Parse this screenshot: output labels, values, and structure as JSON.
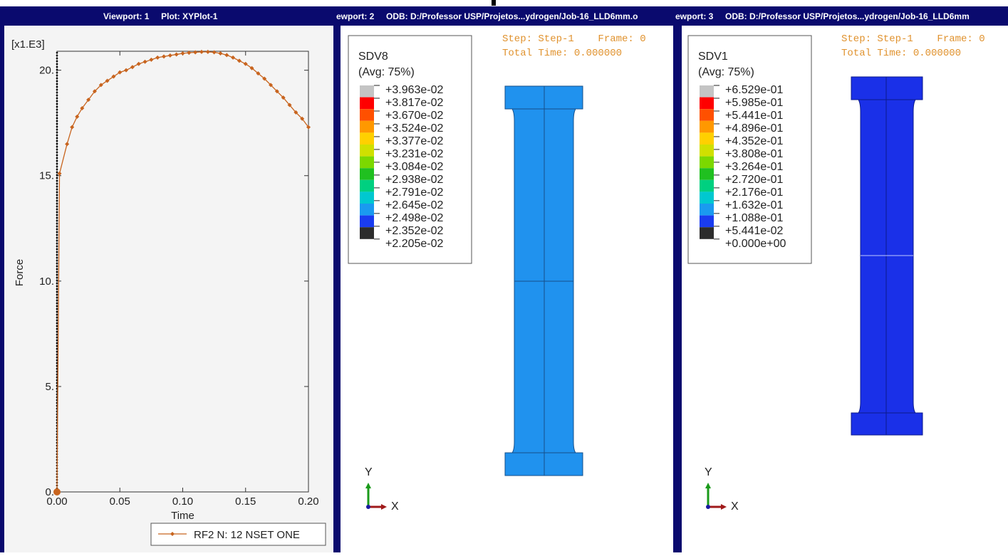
{
  "viewports": [
    {
      "title": "Viewport: 1     Plot: XYPlot-1"
    },
    {
      "title": "ewport: 2     ODB: D:/Professor USP/Projetos...ydrogen/Job-16_LLD6mm.o",
      "step": "Step: Step-1    Frame: 0",
      "time": "Total Time: 0.000000",
      "legend_title": "SDV8",
      "legend_subtitle": "(Avg: 75%)",
      "legend": [
        {
          "label": "+3.963e-02",
          "color": "#c4c4c4"
        },
        {
          "label": "+3.817e-02",
          "color": "#ff0000"
        },
        {
          "label": "+3.670e-02",
          "color": "#ff5000"
        },
        {
          "label": "+3.524e-02",
          "color": "#ff9800"
        },
        {
          "label": "+3.377e-02",
          "color": "#ffd000"
        },
        {
          "label": "+3.231e-02",
          "color": "#d0e000"
        },
        {
          "label": "+3.084e-02",
          "color": "#7cd800"
        },
        {
          "label": "+2.938e-02",
          "color": "#20c020"
        },
        {
          "label": "+2.791e-02",
          "color": "#00d080"
        },
        {
          "label": "+2.645e-02",
          "color": "#00c8d0"
        },
        {
          "label": "+2.498e-02",
          "color": "#1a9af0"
        },
        {
          "label": "+2.352e-02",
          "color": "#1a3cf0"
        },
        {
          "label": "+2.205e-02",
          "color": "#2c2c2c"
        }
      ],
      "model_color": "#2092ee",
      "triad": {
        "y": "Y",
        "x": "X"
      }
    },
    {
      "title": "ewport: 3     ODB: D:/Professor USP/Projetos...ydrogen/Job-16_LLD6mm",
      "step": "Step: Step-1    Frame: 0",
      "time": "Total Time: 0.000000",
      "legend_title": "SDV1",
      "legend_subtitle": "(Avg: 75%)",
      "legend": [
        {
          "label": "+6.529e-01",
          "color": "#c4c4c4"
        },
        {
          "label": "+5.985e-01",
          "color": "#ff0000"
        },
        {
          "label": "+5.441e-01",
          "color": "#ff5000"
        },
        {
          "label": "+4.896e-01",
          "color": "#ff9800"
        },
        {
          "label": "+4.352e-01",
          "color": "#ffd000"
        },
        {
          "label": "+3.808e-01",
          "color": "#d0e000"
        },
        {
          "label": "+3.264e-01",
          "color": "#7cd800"
        },
        {
          "label": "+2.720e-01",
          "color": "#20c020"
        },
        {
          "label": "+2.176e-01",
          "color": "#00d080"
        },
        {
          "label": "+1.632e-01",
          "color": "#00c8d0"
        },
        {
          "label": "+1.088e-01",
          "color": "#1a9af0"
        },
        {
          "label": "+5.441e-02",
          "color": "#1a3cf0"
        },
        {
          "label": "+0.000e+00",
          "color": "#2c2c2c"
        }
      ],
      "model_color": "#1a30e8",
      "triad": {
        "y": "Y",
        "x": "X"
      }
    }
  ],
  "chart_data": {
    "type": "line",
    "y_multiplier": "[x1.E3]",
    "x_label": "Time",
    "y_label": "Force",
    "x": [
      0,
      0.002,
      0.008,
      0.012,
      0.016,
      0.02,
      0.025,
      0.03,
      0.035,
      0.04,
      0.045,
      0.05,
      0.055,
      0.06,
      0.065,
      0.07,
      0.075,
      0.08,
      0.085,
      0.09,
      0.095,
      0.1,
      0.105,
      0.11,
      0.115,
      0.12,
      0.125,
      0.13,
      0.135,
      0.14,
      0.145,
      0.15,
      0.155,
      0.16,
      0.165,
      0.17,
      0.175,
      0.18,
      0.185,
      0.19,
      0.195,
      0.2
    ],
    "series": [
      {
        "name": "RF2 N: 12 NSET ONE",
        "color": "#c8641e",
        "values": [
          0,
          15.1,
          16.5,
          17.3,
          17.8,
          18.2,
          18.6,
          19.0,
          19.3,
          19.5,
          19.7,
          19.9,
          20.0,
          20.15,
          20.3,
          20.4,
          20.5,
          20.6,
          20.65,
          20.7,
          20.75,
          20.8,
          20.83,
          20.85,
          20.87,
          20.87,
          20.85,
          20.8,
          20.72,
          20.6,
          20.45,
          20.3,
          20.1,
          19.85,
          19.6,
          19.3,
          19.0,
          18.7,
          18.35,
          18.0,
          17.7,
          17.3
        ]
      }
    ],
    "xlim": [
      0,
      0.2
    ],
    "ylim": [
      0,
      20.9
    ],
    "xticks": [
      {
        "value": 0,
        "label": "0.00"
      },
      {
        "value": 0.05,
        "label": "0.05"
      },
      {
        "value": 0.1,
        "label": "0.10"
      },
      {
        "value": 0.15,
        "label": "0.15"
      },
      {
        "value": 0.2,
        "label": "0.20"
      }
    ],
    "yticks": [
      {
        "value": 0,
        "label": "0."
      },
      {
        "value": 5,
        "label": "5."
      },
      {
        "value": 10,
        "label": "10."
      },
      {
        "value": 15,
        "label": "15."
      },
      {
        "value": 20,
        "label": "20."
      }
    ]
  }
}
